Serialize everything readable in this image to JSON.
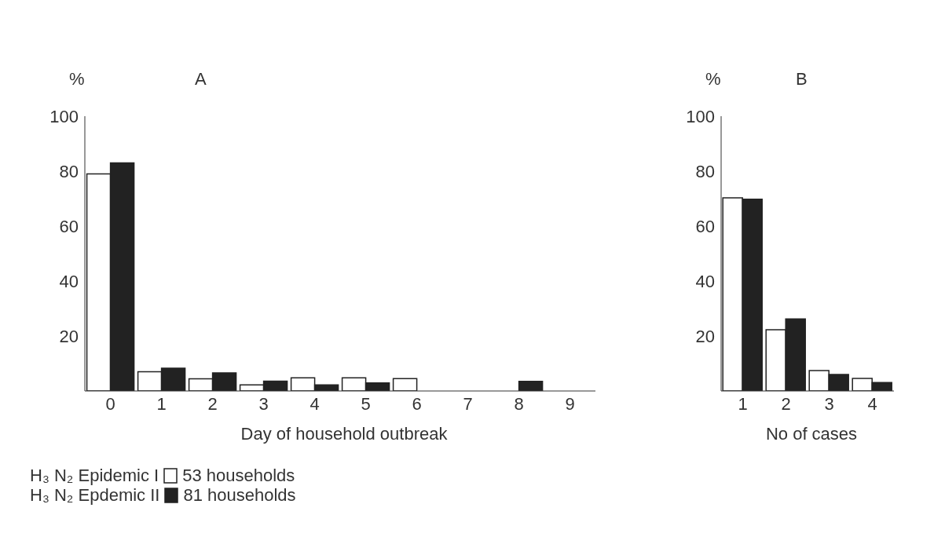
{
  "chart_data": [
    {
      "type": "bar",
      "title": "A",
      "ylabel": "%",
      "xlabel": "Day of household outbreak",
      "categories": [
        "0",
        "1",
        "2",
        "3",
        "4",
        "5",
        "6",
        "7",
        "8",
        "9"
      ],
      "series": [
        {
          "name": "H₃ N₂ Epidemic I",
          "color": "#ffffff",
          "values": [
            79,
            7,
            4.4,
            2.2,
            4.8,
            4.8,
            4.5,
            0,
            0,
            0
          ]
        },
        {
          "name": "H₃ N₂ Epdemic II",
          "color": "#222222",
          "values": [
            83,
            8.3,
            6.6,
            3.6,
            2.2,
            2.9,
            0,
            0,
            3.5,
            0
          ]
        }
      ],
      "ylim": [
        0,
        100
      ],
      "yticks": [
        20,
        40,
        60,
        80,
        100
      ],
      "grid": false,
      "legend": "bottom",
      "annotations": [
        "53 households",
        "81 households"
      ]
    },
    {
      "type": "bar",
      "title": "B",
      "ylabel": "%",
      "xlabel": "No of cases",
      "categories": [
        "1",
        "2",
        "3",
        "4"
      ],
      "series": [
        {
          "color": "#ffffff",
          "values": [
            70.3,
            22.3,
            7.4,
            4.6
          ]
        },
        {
          "color": "#222222",
          "values": [
            69.8,
            26.2,
            6,
            3.1
          ]
        }
      ],
      "ylim": [
        0,
        100
      ],
      "yticks": [
        20,
        40,
        60,
        80,
        100
      ],
      "grid": false,
      "legend": false
    }
  ]
}
